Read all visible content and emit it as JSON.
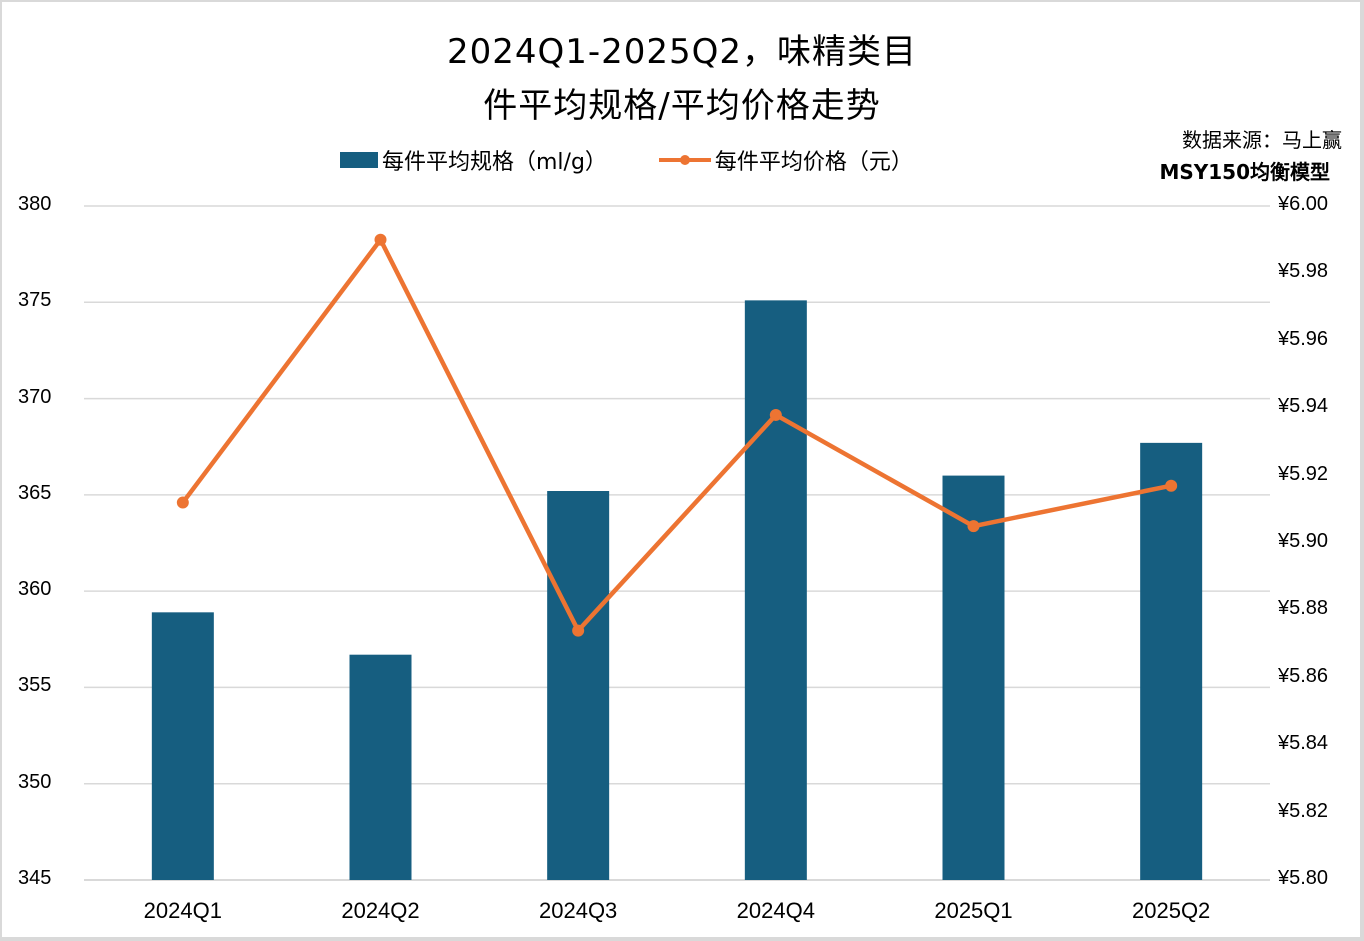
{
  "title": {
    "line1": "2024Q1-2025Q2，味精类目",
    "line2": "件平均规格/平均价格走势"
  },
  "source": {
    "line1": "数据来源：马上赢",
    "line2": "MSY150均衡模型"
  },
  "legend": {
    "bar_label": "每件平均规格（ml/g）",
    "line_label": "每件平均价格（元）"
  },
  "axes": {
    "left_ticks": [
      "380",
      "375",
      "370",
      "365",
      "360",
      "355",
      "350",
      "345"
    ],
    "right_ticks": [
      "¥6.00",
      "¥5.98",
      "¥5.96",
      "¥5.94",
      "¥5.92",
      "¥5.90",
      "¥5.88",
      "¥5.86",
      "¥5.84",
      "¥5.82",
      "¥5.80"
    ],
    "x_ticks": [
      "2024Q1",
      "2024Q2",
      "2024Q3",
      "2024Q4",
      "2025Q1",
      "2025Q2"
    ]
  },
  "colors": {
    "bar": "#165e80",
    "line": "#ed7432",
    "grid": "#d9d9d9"
  },
  "chart_data": {
    "type": "bar+line",
    "title": "2024Q1-2025Q2，味精类目件平均规格/平均价格走势",
    "categories": [
      "2024Q1",
      "2024Q2",
      "2024Q3",
      "2024Q4",
      "2025Q1",
      "2025Q2"
    ],
    "series": [
      {
        "name": "每件平均规格（ml/g）",
        "type": "bar",
        "axis": "left",
        "values": [
          358.9,
          356.7,
          365.2,
          375.1,
          366.0,
          367.7
        ]
      },
      {
        "name": "每件平均价格（元）",
        "type": "line",
        "axis": "right",
        "values": [
          5.912,
          5.99,
          5.874,
          5.938,
          5.905,
          5.917
        ]
      }
    ],
    "xlabel": "",
    "ylabel_left": "",
    "ylabel_right": "",
    "ylim_left": [
      345,
      380
    ],
    "ylim_right": [
      5.8,
      6.0
    ],
    "left_tick_step": 5,
    "right_tick_step": 0.02,
    "grid": true,
    "legend_position": "top",
    "annotations": [
      "数据来源：马上赢",
      "MSY150均衡模型"
    ]
  }
}
